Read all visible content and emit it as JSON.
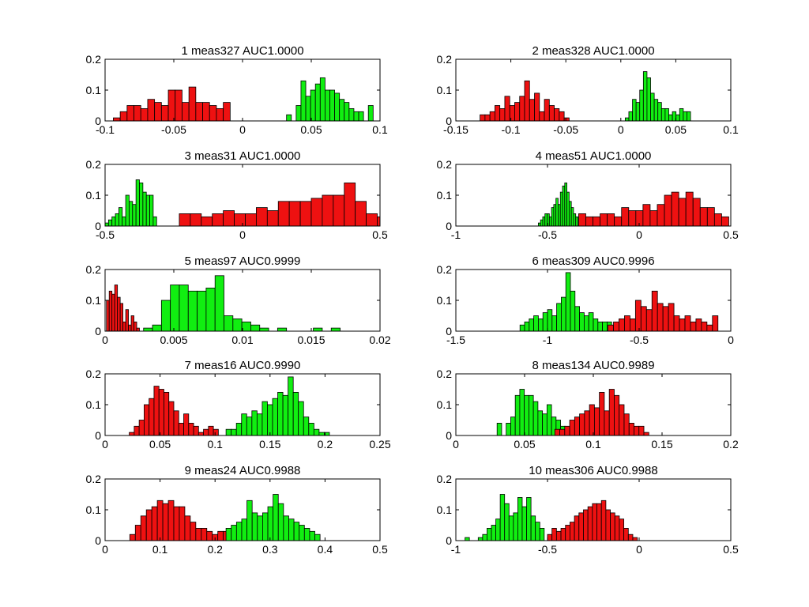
{
  "colors": {
    "class_a": "#ee1111",
    "class_b": "#11ee11",
    "edge": "#000000",
    "frame": "#000000",
    "background": "#ffffff"
  },
  "chart_data": [
    {
      "type": "histogram",
      "title": "1 meas327 AUC1.0000",
      "xlim": [
        -0.1,
        0.1
      ],
      "ylim": [
        0,
        0.2
      ],
      "xticks": [
        "-0.1",
        "-0.05",
        "0",
        "0.05",
        "0.1"
      ],
      "xtick_values": [
        -0.1,
        -0.05,
        0,
        0.05,
        0.1
      ],
      "yticks": [
        "0",
        "0.1",
        "0.2"
      ],
      "ytick_values": [
        0,
        0.1,
        0.2
      ],
      "series": [
        {
          "color": "red",
          "bin_start": -0.094,
          "bin_width": 0.005,
          "values": [
            0.01,
            0.03,
            0.05,
            0.05,
            0.04,
            0.07,
            0.06,
            0.05,
            0.1,
            0.1,
            0.06,
            0.11,
            0.06,
            0.06,
            0.05,
            0.04,
            0.06
          ]
        },
        {
          "color": "green",
          "bin_start": 0.032,
          "bin_width": 0.0035,
          "values": [
            0.02,
            0,
            0.05,
            0.13,
            0.08,
            0.1,
            0.12,
            0.14,
            0.1,
            0.1,
            0.09,
            0.07,
            0.06,
            0.04,
            0.03,
            0.03,
            0,
            0.05
          ]
        }
      ]
    },
    {
      "type": "histogram",
      "title": "2 meas328 AUC1.0000",
      "xlim": [
        -0.15,
        0.1
      ],
      "ylim": [
        0,
        0.2
      ],
      "xticks": [
        "-0.15",
        "-0.1",
        "-0.05",
        "0",
        "0.05",
        "0.1"
      ],
      "xtick_values": [
        -0.15,
        -0.1,
        -0.05,
        0,
        0.05,
        0.1
      ],
      "yticks": [
        "0",
        "0.1",
        "0.2"
      ],
      "ytick_values": [
        0,
        0.1,
        0.2
      ],
      "series": [
        {
          "color": "red",
          "bin_start": -0.128,
          "bin_width": 0.0045,
          "values": [
            0.02,
            0.02,
            0.03,
            0.05,
            0.04,
            0.08,
            0.05,
            0.06,
            0.08,
            0.13,
            0.07,
            0.09,
            0.03,
            0.07,
            0.05,
            0.04,
            0.03,
            0.01
          ]
        },
        {
          "color": "green",
          "bin_start": 0.004,
          "bin_width": 0.0033,
          "values": [
            0.01,
            0.03,
            0.07,
            0.06,
            0.1,
            0.16,
            0.14,
            0.09,
            0.07,
            0.06,
            0.04,
            0.04,
            0.02,
            0.03,
            0.02,
            0.04,
            0.03,
            0.03
          ]
        }
      ]
    },
    {
      "type": "histogram",
      "title": "3 meas31 AUC1.0000",
      "xlim": [
        -0.5,
        0.5
      ],
      "ylim": [
        0,
        0.2
      ],
      "xticks": [
        "-0.5",
        "0",
        "0.5"
      ],
      "xtick_values": [
        -0.5,
        0,
        0.5
      ],
      "yticks": [
        "0",
        "0.1",
        "0.2"
      ],
      "ytick_values": [
        0,
        0.1,
        0.2
      ],
      "series": [
        {
          "color": "green",
          "bin_start": -0.5,
          "bin_width": 0.0125,
          "values": [
            0.01,
            0.02,
            0.03,
            0.04,
            0.06,
            0.03,
            0.1,
            0.08,
            0.07,
            0.15,
            0.14,
            0.11,
            0.1,
            0.1,
            0.03
          ]
        },
        {
          "color": "red",
          "bin_start": -0.23,
          "bin_width": 0.04,
          "values": [
            0.04,
            0.04,
            0.03,
            0.04,
            0.05,
            0.04,
            0.04,
            0.06,
            0.05,
            0.08,
            0.08,
            0.08,
            0.09,
            0.1,
            0.1,
            0.14,
            0.08,
            0.04,
            0.03,
            0.03,
            0.02
          ]
        }
      ]
    },
    {
      "type": "histogram",
      "title": "4 meas51 AUC1.0000",
      "xlim": [
        -1,
        0.5
      ],
      "ylim": [
        0,
        0.2
      ],
      "xticks": [
        "-1",
        "-0.5",
        "0",
        "0.5"
      ],
      "xtick_values": [
        -1,
        -0.5,
        0,
        0.5
      ],
      "yticks": [
        "0",
        "0.1",
        "0.2"
      ],
      "ytick_values": [
        0,
        0.1,
        0.2
      ],
      "series": [
        {
          "color": "green",
          "bin_start": -0.55,
          "bin_width": 0.012,
          "values": [
            0.01,
            0.02,
            0.03,
            0.04,
            0.04,
            0.03,
            0.06,
            0.07,
            0.09,
            0.07,
            0.11,
            0.13,
            0.14,
            0.11,
            0.08,
            0.06,
            0.04,
            0.03
          ]
        },
        {
          "color": "red",
          "bin_start": -0.33,
          "bin_width": 0.039,
          "values": [
            0.04,
            0.03,
            0.03,
            0.04,
            0.04,
            0.03,
            0.06,
            0.05,
            0.05,
            0.07,
            0.05,
            0.07,
            0.1,
            0.11,
            0.09,
            0.11,
            0.09,
            0.06,
            0.06,
            0.04,
            0.03
          ]
        }
      ]
    },
    {
      "type": "histogram",
      "title": "5 meas97 AUC0.9999",
      "xlim": [
        0,
        0.02
      ],
      "ylim": [
        0,
        0.2
      ],
      "xticks": [
        "0",
        "0.005",
        "0.01",
        "0.015",
        "0.02"
      ],
      "xtick_values": [
        0,
        0.005,
        0.01,
        0.015,
        0.02
      ],
      "yticks": [
        "0",
        "0.1",
        "0.2"
      ],
      "ytick_values": [
        0,
        0.1,
        0.2
      ],
      "series": [
        {
          "color": "red",
          "bin_start": 0.0001,
          "bin_width": 0.0002,
          "values": [
            0.1,
            0.13,
            0.12,
            0.15,
            0.11,
            0.09,
            0.03,
            0.07,
            0.02,
            0.05,
            0.03,
            0.01
          ]
        },
        {
          "color": "green",
          "bin_start": 0.0028,
          "bin_width": 0.00065,
          "values": [
            0.01,
            0.02,
            0.1,
            0.15,
            0.15,
            0.13,
            0.13,
            0.14,
            0.18,
            0.05,
            0.04,
            0.03,
            0.02,
            0.01,
            0,
            0.01,
            0,
            0,
            0,
            0.01,
            0,
            0.01
          ]
        }
      ]
    },
    {
      "type": "histogram",
      "title": "6 meas309 AUC0.9996",
      "xlim": [
        -1.5,
        0
      ],
      "ylim": [
        0,
        0.2
      ],
      "xticks": [
        "-1.5",
        "-1",
        "-0.5",
        "0"
      ],
      "xtick_values": [
        -1.5,
        -1,
        -0.5,
        0
      ],
      "yticks": [
        "0",
        "0.1",
        "0.2"
      ],
      "ytick_values": [
        0,
        0.1,
        0.2
      ],
      "series": [
        {
          "color": "green",
          "bin_start": -1.15,
          "bin_width": 0.025,
          "values": [
            0.02,
            0.03,
            0.04,
            0.05,
            0.04,
            0.06,
            0.07,
            0.05,
            0.09,
            0.11,
            0.19,
            0.13,
            0.08,
            0.06,
            0.05,
            0.06,
            0.04,
            0.03,
            0.03,
            0.03
          ]
        },
        {
          "color": "red",
          "bin_start": -0.67,
          "bin_width": 0.03,
          "values": [
            0.02,
            0.03,
            0.04,
            0.05,
            0.04,
            0.1,
            0.08,
            0.07,
            0.13,
            0.09,
            0.08,
            0.09,
            0.05,
            0.04,
            0.05,
            0.03,
            0.04,
            0.03,
            0.02,
            0.05
          ]
        }
      ]
    },
    {
      "type": "histogram",
      "title": "7 meas16 AUC0.9990",
      "xlim": [
        0,
        0.25
      ],
      "ylim": [
        0,
        0.2
      ],
      "xticks": [
        "0",
        "0.05",
        "0.1",
        "0.15",
        "0.2",
        "0.25"
      ],
      "xtick_values": [
        0,
        0.05,
        0.1,
        0.15,
        0.2,
        0.25
      ],
      "yticks": [
        "0",
        "0.1",
        "0.2"
      ],
      "ytick_values": [
        0,
        0.1,
        0.2
      ],
      "series": [
        {
          "color": "red",
          "bin_start": 0.022,
          "bin_width": 0.0045,
          "values": [
            0.01,
            0.03,
            0.05,
            0.1,
            0.12,
            0.16,
            0.15,
            0.14,
            0.11,
            0.08,
            0.04,
            0.07,
            0.04,
            0.03,
            0.01,
            0.02,
            0.03,
            0.02
          ]
        },
        {
          "color": "green",
          "bin_start": 0.11,
          "bin_width": 0.0047,
          "values": [
            0.02,
            0.02,
            0.04,
            0.07,
            0.06,
            0.08,
            0.07,
            0.11,
            0.1,
            0.12,
            0.14,
            0.13,
            0.19,
            0.14,
            0.11,
            0.06,
            0.04,
            0.02,
            0.01,
            0.01
          ]
        }
      ]
    },
    {
      "type": "histogram",
      "title": "8 meas134 AUC0.9989",
      "xlim": [
        0,
        0.2
      ],
      "ylim": [
        0,
        0.2
      ],
      "xticks": [
        "0",
        "0.05",
        "0.1",
        "0.15",
        "0.2"
      ],
      "xtick_values": [
        0,
        0.05,
        0.1,
        0.15,
        0.2
      ],
      "yticks": [
        "0",
        "0.1",
        "0.2"
      ],
      "ytick_values": [
        0,
        0.1,
        0.2
      ],
      "series": [
        {
          "color": "green",
          "bin_start": 0.03,
          "bin_width": 0.0033,
          "values": [
            0.04,
            0,
            0.04,
            0.06,
            0.13,
            0.15,
            0.13,
            0.13,
            0.11,
            0.08,
            0.07,
            0.1,
            0.06,
            0.05,
            0.03
          ]
        },
        {
          "color": "red",
          "bin_start": 0.072,
          "bin_width": 0.0036,
          "values": [
            0.02,
            0.02,
            0.03,
            0.05,
            0.06,
            0.07,
            0.08,
            0.1,
            0.09,
            0.14,
            0.08,
            0.15,
            0.13,
            0.1,
            0.07,
            0.04,
            0.03,
            0.03,
            0.01
          ]
        }
      ]
    },
    {
      "type": "histogram",
      "title": "9 meas24 AUC0.9988",
      "xlim": [
        0,
        0.5
      ],
      "ylim": [
        0,
        0.2
      ],
      "xticks": [
        "0",
        "0.1",
        "0.2",
        "0.3",
        "0.4",
        "0.5"
      ],
      "xtick_values": [
        0,
        0.1,
        0.2,
        0.3,
        0.4,
        0.5
      ],
      "yticks": [
        "0",
        "0.1",
        "0.2"
      ],
      "ytick_values": [
        0,
        0.1,
        0.2
      ],
      "series": [
        {
          "color": "red",
          "bin_start": 0.045,
          "bin_width": 0.01,
          "values": [
            0.02,
            0.05,
            0.08,
            0.1,
            0.11,
            0.13,
            0.12,
            0.13,
            0.11,
            0.11,
            0.08,
            0.06,
            0.04,
            0.04,
            0.03,
            0.02,
            0.03,
            0.03
          ]
        },
        {
          "color": "green",
          "bin_start": 0.22,
          "bin_width": 0.0095,
          "values": [
            0.04,
            0.05,
            0.06,
            0.07,
            0.13,
            0.09,
            0.08,
            0.09,
            0.11,
            0.15,
            0.12,
            0.08,
            0.07,
            0.06,
            0.05,
            0.04,
            0.03,
            0.02
          ]
        }
      ]
    },
    {
      "type": "histogram",
      "title": "10 meas306 AUC0.9988",
      "xlim": [
        -1,
        0.5
      ],
      "ylim": [
        0,
        0.2
      ],
      "xticks": [
        "-1",
        "-0.5",
        "0",
        "0.5"
      ],
      "xtick_values": [
        -1,
        -0.5,
        0,
        0.5
      ],
      "yticks": [
        "0",
        "0.1",
        "0.2"
      ],
      "ytick_values": [
        0,
        0.1,
        0.2
      ],
      "series": [
        {
          "color": "green",
          "bin_start": -0.95,
          "bin_width": 0.024,
          "values": [
            0.01,
            0,
            0,
            0.01,
            0.02,
            0.04,
            0.05,
            0.07,
            0.15,
            0.12,
            0.08,
            0.09,
            0.14,
            0.11,
            0.14,
            0.08,
            0.06,
            0.04
          ]
        },
        {
          "color": "red",
          "bin_start": -0.5,
          "bin_width": 0.0245,
          "values": [
            0.02,
            0.04,
            0.03,
            0.04,
            0.05,
            0.06,
            0.08,
            0.09,
            0.1,
            0.11,
            0.12,
            0.12,
            0.13,
            0.1,
            0.09,
            0.08,
            0.07,
            0.04,
            0.02,
            0.01
          ]
        }
      ]
    }
  ]
}
